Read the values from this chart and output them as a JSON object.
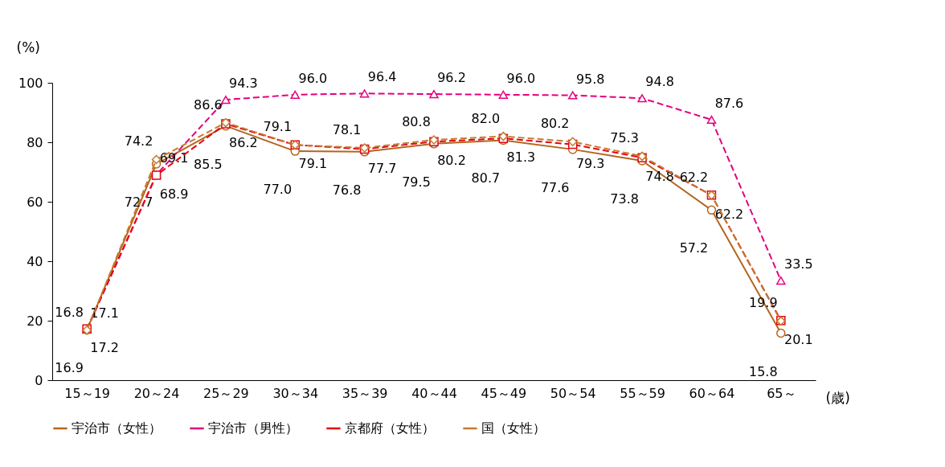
{
  "chart_data": {
    "type": "line",
    "ylabel": "(%)",
    "xlabel": "(歳)",
    "categories": [
      "15～19",
      "20～24",
      "25～29",
      "30～34",
      "35～39",
      "40～44",
      "45～49",
      "50～54",
      "55～59",
      "60～64",
      "65～"
    ],
    "ylim": [
      0,
      100
    ],
    "yticks": [
      0,
      20,
      40,
      60,
      80,
      100
    ],
    "grid": false,
    "legend": "bottom",
    "series": [
      {
        "name": "宇治市（女性）",
        "color": "#b5651d",
        "marker": "circle",
        "line_style": "solid",
        "values": [
          16.9,
          72.7,
          85.5,
          77.0,
          76.8,
          79.5,
          80.7,
          77.6,
          73.8,
          57.2,
          15.8
        ],
        "value_labels": [
          "16.9",
          "72.7",
          "85.5",
          "77.0",
          "76.8",
          "79.5",
          "80.7",
          "77.6",
          "73.8",
          "57.2",
          "15.8"
        ]
      },
      {
        "name": "宇治市（男性）",
        "color": "#e4007f",
        "marker": "triangle",
        "line_style": "dashed",
        "values": [
          17.1,
          69.1,
          94.3,
          96.0,
          96.4,
          96.2,
          96.0,
          95.8,
          94.8,
          87.6,
          33.5
        ],
        "value_labels": [
          "17.1",
          "69.1",
          "94.3",
          "96.0",
          "96.4",
          "96.2",
          "96.0",
          "95.8",
          "94.8",
          "87.6",
          "33.5"
        ]
      },
      {
        "name": "京都府（女性）",
        "color": "#e60012",
        "marker": "square",
        "line_style": "dashed",
        "values": [
          17.2,
          68.9,
          86.2,
          79.1,
          77.7,
          80.2,
          81.3,
          79.3,
          74.8,
          62.2,
          20.1
        ],
        "value_labels": [
          "17.2",
          "68.9",
          "86.2",
          "79.1",
          "77.7",
          "80.2",
          "81.3",
          "79.3",
          "74.8",
          "62.2",
          "20.1"
        ]
      },
      {
        "name": "国（女性）",
        "color": "#c47a2c",
        "marker": "diamond",
        "line_style": "dashed",
        "values": [
          16.8,
          74.2,
          86.6,
          79.1,
          78.1,
          80.8,
          82.0,
          80.2,
          75.3,
          62.2,
          19.9
        ],
        "value_labels": [
          "16.8",
          "74.2",
          "86.6",
          "79.1",
          "78.1",
          "80.8",
          "82.0",
          "80.2",
          "75.3",
          "62.2",
          "19.9"
        ]
      }
    ]
  }
}
